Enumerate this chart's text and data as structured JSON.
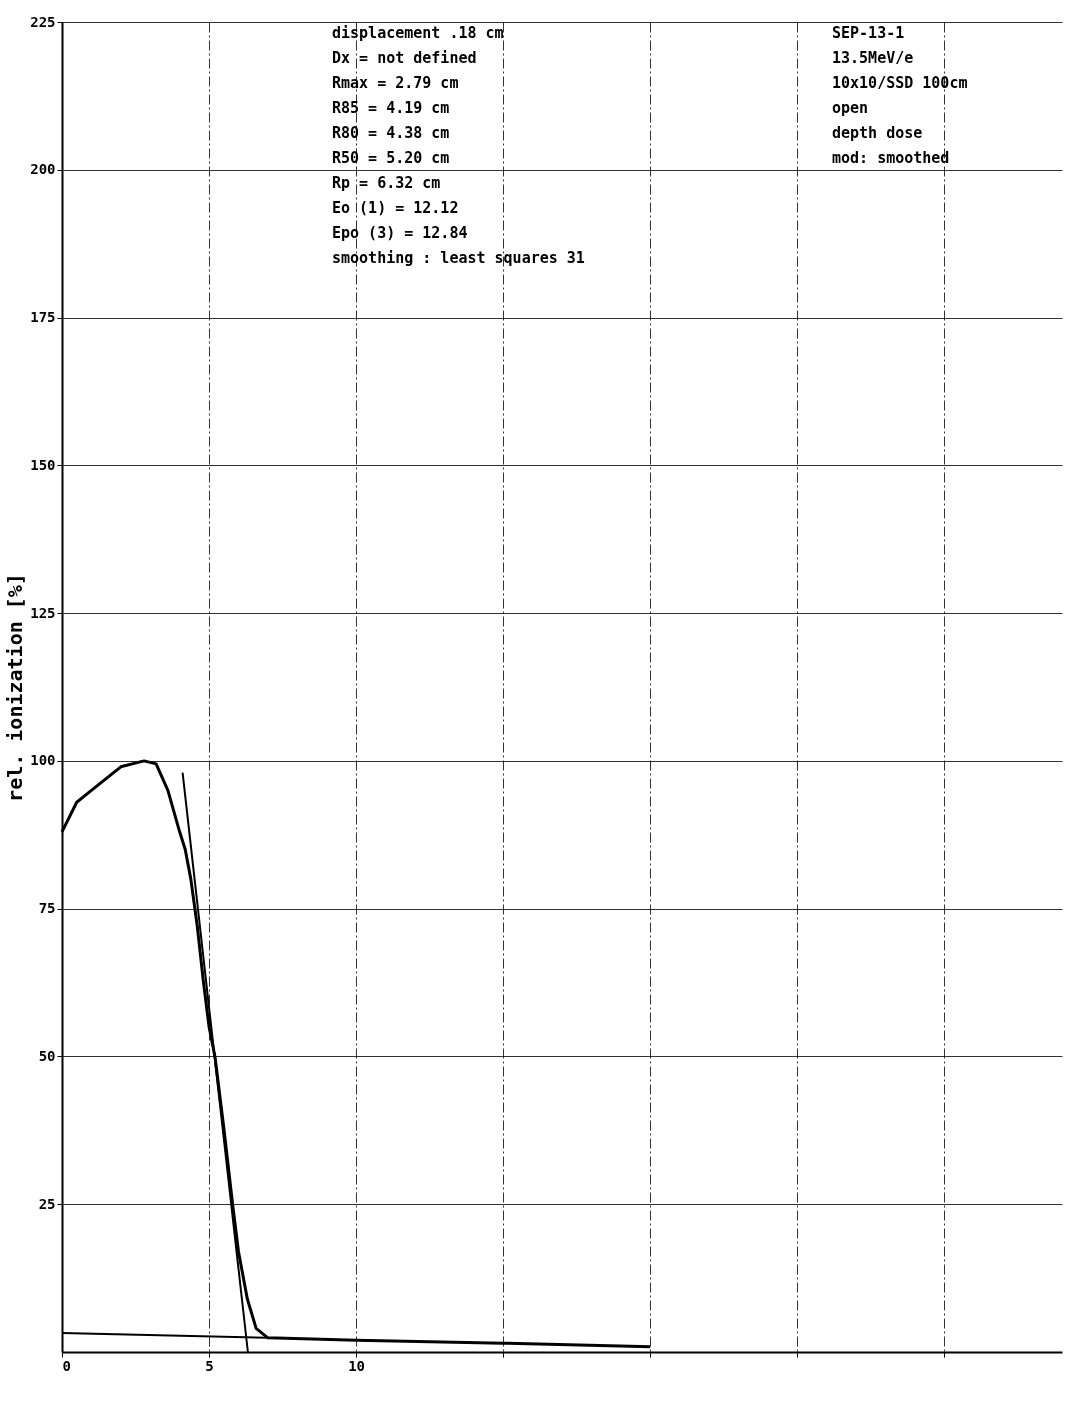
{
  "chart_data": {
    "type": "line",
    "ylabel": "rel. ionization [%]",
    "xlim": [
      0,
      34
    ],
    "ylim": [
      0,
      225
    ],
    "xticks": [
      0,
      5,
      10,
      {
        "value": 15,
        "label": null
      },
      {
        "value": 20,
        "label": null
      },
      {
        "value": 25,
        "label": null
      },
      {
        "value": 30,
        "label": null
      }
    ],
    "yticks": [
      25,
      50,
      75,
      100,
      125,
      150,
      175,
      200,
      225
    ],
    "grid": true,
    "marker": "none",
    "line_style": "solid",
    "series": [
      {
        "color": "#000000",
        "x": [
          0,
          0.5,
          1,
          1.5,
          2,
          2.79,
          3.2,
          3.6,
          4,
          4.19,
          4.38,
          4.6,
          4.8,
          5,
          5.2,
          5.5,
          5.8,
          6,
          6.3,
          6.6,
          7,
          10,
          15,
          20
        ],
        "values": [
          88,
          93,
          95,
          97,
          99,
          100,
          99.5,
          95,
          88,
          85,
          80,
          72,
          63,
          55,
          50,
          38,
          25,
          17,
          9,
          4,
          2.4,
          2,
          1.5,
          0.9
        ]
      },
      {
        "color": "#000000",
        "x": [
          4.1,
          6.32
        ],
        "values": [
          98,
          0
        ]
      },
      {
        "color": "#000000",
        "x": [
          0,
          7
        ],
        "values": [
          3.2,
          2.4
        ]
      }
    ],
    "annotations": [
      "displacement .18 cm",
      "Dx      = not defined",
      "Rmax    =  2.79 cm",
      "R85     =  4.19 cm",
      "R80     =  4.38 cm",
      "R50     =  5.20 cm",
      "Rp      =  6.32 cm",
      "Eo (1)  = 12.12",
      "Epo (3) = 12.84",
      "smoothing :  least squares  31",
      "SEP-13-1",
      "13.5MeV/e",
      "10x10/SSD 100cm",
      "open",
      "depth dose",
      "mod: smoothed"
    ]
  }
}
